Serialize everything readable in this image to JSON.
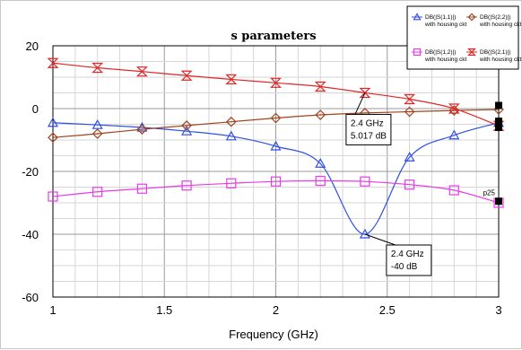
{
  "chart_data": {
    "type": "line",
    "title": "s parameters",
    "xlabel": "Frequency (GHz)",
    "ylabel": "",
    "xlim": [
      1,
      3
    ],
    "ylim": [
      -60,
      20
    ],
    "xticks": [
      "1",
      "1.5",
      "2",
      "2.5",
      "3"
    ],
    "yticks": [
      "20",
      "0",
      "-20",
      "-40",
      "-60"
    ],
    "grid": true,
    "legend_position": "top-right",
    "x": [
      1.0,
      1.2,
      1.4,
      1.6,
      1.8,
      2.0,
      2.2,
      2.4,
      2.6,
      2.8,
      3.0
    ],
    "series": [
      {
        "name": "DB(|S(1,1)|)",
        "note": "with housing ckt",
        "color": "#2f4fe6",
        "marker": "triangle",
        "values": [
          -4.5,
          -5.2,
          -6.0,
          -7.2,
          -8.8,
          -12.0,
          -17.5,
          -40.0,
          -15.5,
          -8.5,
          -4.5
        ]
      },
      {
        "name": "DB(|S(2,2)|)",
        "note": "with housing ckt",
        "color": "#a0441e",
        "marker": "diamond",
        "values": [
          -9.2,
          -8.0,
          -6.6,
          -5.4,
          -4.2,
          -3.0,
          -2.0,
          -1.4,
          -1.0,
          -0.6,
          -0.3
        ]
      },
      {
        "name": "DB(|S(1,2)|)",
        "note": "with housing ckt",
        "color": "#e83ae8",
        "marker": "square",
        "values": [
          -28.0,
          -26.5,
          -25.5,
          -24.5,
          -23.8,
          -23.2,
          -23.0,
          -23.2,
          -24.2,
          -26.0,
          -30.0
        ]
      },
      {
        "name": "DB(|S(2,1)|)",
        "note": "with housing ckt",
        "color": "#e02626",
        "marker": "hourglass",
        "values": [
          14.5,
          13.0,
          11.8,
          10.5,
          9.3,
          8.2,
          7.0,
          5.017,
          3.0,
          0.0,
          -5.5
        ]
      }
    ],
    "annotations": [
      {
        "x": 2.4,
        "y": 5.017,
        "freq": "2.4 GHz",
        "value": "5.017 dB"
      },
      {
        "x": 2.4,
        "y": -40,
        "freq": "2.4 GHz",
        "value": "-40 dB"
      }
    ],
    "extra_label": "p25"
  }
}
